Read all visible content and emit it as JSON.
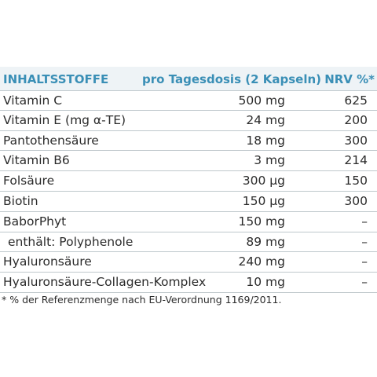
{
  "header": {
    "ingredients": "INHALTSSTOFFE",
    "dose": "pro Tagesdosis (2 Kapseln)",
    "nrv": "NRV %*"
  },
  "rows": [
    {
      "name": "Vitamin C",
      "dose": "500 mg",
      "nrv": "625"
    },
    {
      "name": "Vitamin E (mg α-TE)",
      "dose": "24 mg",
      "nrv": "200"
    },
    {
      "name": "Pantothensäure",
      "dose": "18 mg",
      "nrv": "300"
    },
    {
      "name": "Vitamin B6",
      "dose": "3 mg",
      "nrv": "214"
    },
    {
      "name": "Folsäure",
      "dose": "300 µg",
      "nrv": "150"
    },
    {
      "name": "Biotin",
      "dose": "150 µg",
      "nrv": "300"
    },
    {
      "name": "BaborPhyt",
      "dose": "150 mg",
      "nrv": "–"
    },
    {
      "name": "enthält: Polyphenole",
      "dose": "89 mg",
      "nrv": "–"
    },
    {
      "name": "Hyaluronsäure",
      "dose": "240 mg",
      "nrv": "–"
    },
    {
      "name": "Hyaluronsäure-Collagen-Komplex",
      "dose": "10 mg",
      "nrv": "–"
    }
  ],
  "footnote": "* % der Referenzmenge nach EU-Verordnung 1169/2011."
}
